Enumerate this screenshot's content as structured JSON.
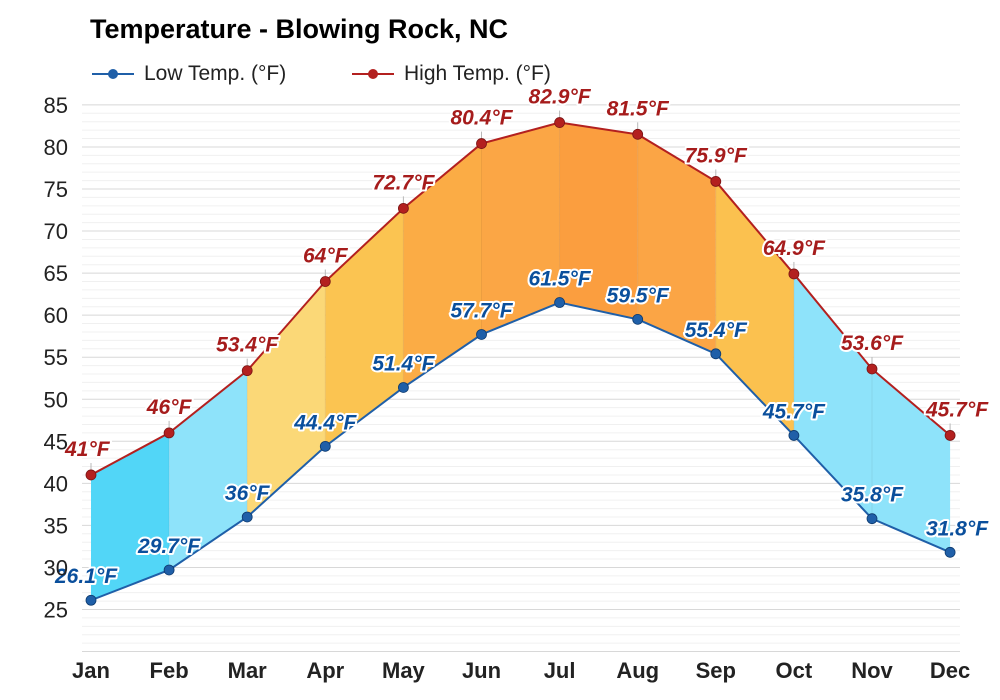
{
  "title": "Temperature - Blowing Rock, NC",
  "legend": {
    "low": "Low Temp. (°F)",
    "high": "High Temp. (°F)"
  },
  "colors": {
    "low_line": "#1f5fa8",
    "high_line": "#b3201f",
    "low_label": "#0a4f9c",
    "high_label": "#a61c1c"
  },
  "chart_data": {
    "type": "area",
    "title": "Temperature - Blowing Rock, NC",
    "categories": [
      "Jan",
      "Feb",
      "Mar",
      "Apr",
      "May",
      "Jun",
      "Jul",
      "Aug",
      "Sep",
      "Oct",
      "Nov",
      "Dec"
    ],
    "series": [
      {
        "name": "Low Temp. (°F)",
        "values": [
          26.1,
          29.7,
          36,
          44.4,
          51.4,
          57.7,
          61.5,
          59.5,
          55.4,
          45.7,
          35.8,
          31.8
        ],
        "labels": [
          "26.1°F",
          "29.7°F",
          "36°F",
          "44.4°F",
          "51.4°F",
          "57.7°F",
          "61.5°F",
          "59.5°F",
          "55.4°F",
          "45.7°F",
          "35.8°F",
          "31.8°F"
        ]
      },
      {
        "name": "High Temp. (°F)",
        "values": [
          41,
          46,
          53.4,
          64,
          72.7,
          80.4,
          82.9,
          81.5,
          75.9,
          64.9,
          53.6,
          45.7
        ],
        "labels": [
          "41°F",
          "46°F",
          "53.4°F",
          "64°F",
          "72.7°F",
          "80.4°F",
          "82.9°F",
          "81.5°F",
          "75.9°F",
          "64.9°F",
          "53.6°F",
          "45.7°F"
        ]
      }
    ],
    "band_colors": [
      "#52d6f7",
      "#8ee3fa",
      "#fbd877",
      "#fbc451",
      "#fbac45",
      "#fba645",
      "#fb9e3f",
      "#fba545",
      "#fbc14f",
      "#8ee3fa",
      "#8ee3fa",
      "#52d6f7"
    ],
    "yticks": [
      "85",
      "80",
      "75",
      "70",
      "65",
      "60",
      "55",
      "50",
      "45",
      "40",
      "35",
      "30",
      "25"
    ],
    "ylim": [
      20,
      85
    ],
    "grid": true,
    "legend_position": "top-left"
  }
}
